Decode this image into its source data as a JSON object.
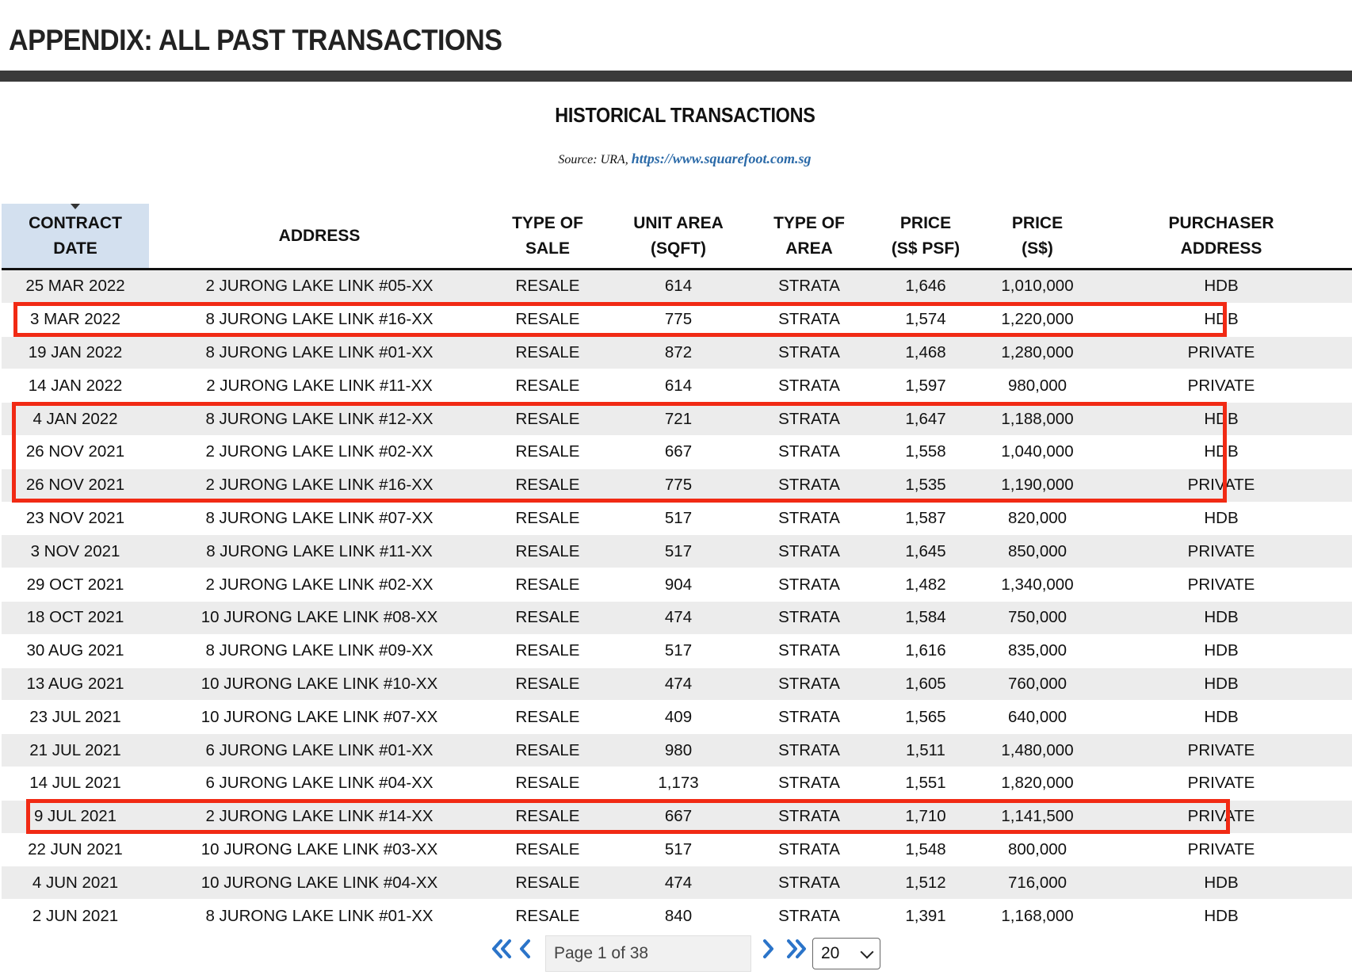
{
  "page_title": "APPENDIX: ALL PAST TRANSACTIONS",
  "table_title": "HISTORICAL TRANSACTIONS",
  "source": {
    "prefix": "Source: URA, ",
    "link": "https://www.squarefoot.com.sg"
  },
  "columns": [
    {
      "line1": "CONTRACT",
      "line2": "DATE"
    },
    {
      "line1": "ADDRESS",
      "line2": ""
    },
    {
      "line1": "TYPE OF",
      "line2": "SALE"
    },
    {
      "line1": "UNIT AREA",
      "line2": "(SQFT)"
    },
    {
      "line1": "TYPE OF",
      "line2": "AREA"
    },
    {
      "line1": "PRICE",
      "line2": "(S$ PSF)"
    },
    {
      "line1": "PRICE",
      "line2": "(S$)"
    },
    {
      "line1": "PURCHASER",
      "line2": "ADDRESS"
    }
  ],
  "rows": [
    [
      "25 MAR 2022",
      "2 JURONG LAKE LINK #05-XX",
      "RESALE",
      "614",
      "STRATA",
      "1,646",
      "1,010,000",
      "HDB"
    ],
    [
      "3 MAR 2022",
      "8 JURONG LAKE LINK #16-XX",
      "RESALE",
      "775",
      "STRATA",
      "1,574",
      "1,220,000",
      "HDB"
    ],
    [
      "19 JAN 2022",
      "8 JURONG LAKE LINK #01-XX",
      "RESALE",
      "872",
      "STRATA",
      "1,468",
      "1,280,000",
      "PRIVATE"
    ],
    [
      "14 JAN 2022",
      "2 JURONG LAKE LINK #11-XX",
      "RESALE",
      "614",
      "STRATA",
      "1,597",
      "980,000",
      "PRIVATE"
    ],
    [
      "4 JAN 2022",
      "8 JURONG LAKE LINK #12-XX",
      "RESALE",
      "721",
      "STRATA",
      "1,647",
      "1,188,000",
      "HDB"
    ],
    [
      "26 NOV 2021",
      "2 JURONG LAKE LINK #02-XX",
      "RESALE",
      "667",
      "STRATA",
      "1,558",
      "1,040,000",
      "HDB"
    ],
    [
      "26 NOV 2021",
      "2 JURONG LAKE LINK #16-XX",
      "RESALE",
      "775",
      "STRATA",
      "1,535",
      "1,190,000",
      "PRIVATE"
    ],
    [
      "23 NOV 2021",
      "8 JURONG LAKE LINK #07-XX",
      "RESALE",
      "517",
      "STRATA",
      "1,587",
      "820,000",
      "HDB"
    ],
    [
      "3 NOV 2021",
      "8 JURONG LAKE LINK #11-XX",
      "RESALE",
      "517",
      "STRATA",
      "1,645",
      "850,000",
      "PRIVATE"
    ],
    [
      "29 OCT 2021",
      "2 JURONG LAKE LINK #02-XX",
      "RESALE",
      "904",
      "STRATA",
      "1,482",
      "1,340,000",
      "PRIVATE"
    ],
    [
      "18 OCT 2021",
      "10 JURONG LAKE LINK #08-XX",
      "RESALE",
      "474",
      "STRATA",
      "1,584",
      "750,000",
      "HDB"
    ],
    [
      "30 AUG 2021",
      "8 JURONG LAKE LINK #09-XX",
      "RESALE",
      "517",
      "STRATA",
      "1,616",
      "835,000",
      "HDB"
    ],
    [
      "13 AUG 2021",
      "10 JURONG LAKE LINK #10-XX",
      "RESALE",
      "474",
      "STRATA",
      "1,605",
      "760,000",
      "HDB"
    ],
    [
      "23 JUL 2021",
      "10 JURONG LAKE LINK #07-XX",
      "RESALE",
      "409",
      "STRATA",
      "1,565",
      "640,000",
      "HDB"
    ],
    [
      "21 JUL 2021",
      "6 JURONG LAKE LINK #01-XX",
      "RESALE",
      "980",
      "STRATA",
      "1,511",
      "1,480,000",
      "PRIVATE"
    ],
    [
      "14 JUL 2021",
      "6 JURONG LAKE LINK #04-XX",
      "RESALE",
      "1,173",
      "STRATA",
      "1,551",
      "1,820,000",
      "PRIVATE"
    ],
    [
      "9 JUL 2021",
      "2 JURONG LAKE LINK #14-XX",
      "RESALE",
      "667",
      "STRATA",
      "1,710",
      "1,141,500",
      "PRIVATE"
    ],
    [
      "22 JUN 2021",
      "10 JURONG LAKE LINK #03-XX",
      "RESALE",
      "517",
      "STRATA",
      "1,548",
      "800,000",
      "PRIVATE"
    ],
    [
      "4 JUN 2021",
      "10 JURONG LAKE LINK #04-XX",
      "RESALE",
      "474",
      "STRATA",
      "1,512",
      "716,000",
      "HDB"
    ],
    [
      "2 JUN 2021",
      "8 JURONG LAKE LINK #01-XX",
      "RESALE",
      "840",
      "STRATA",
      "1,391",
      "1,168,000",
      "HDB"
    ]
  ],
  "highlighted_rows": [
    [
      1
    ],
    [
      4,
      5,
      6
    ],
    [
      16
    ]
  ],
  "highlight_color": "#f12a14",
  "pagination": {
    "first_icon": "double-chevron-left-icon",
    "prev_icon": "chevron-left-icon",
    "next_icon": "chevron-right-icon",
    "last_icon": "double-chevron-right-icon",
    "page_label": "Page 1 of 38",
    "page_size": "20"
  }
}
